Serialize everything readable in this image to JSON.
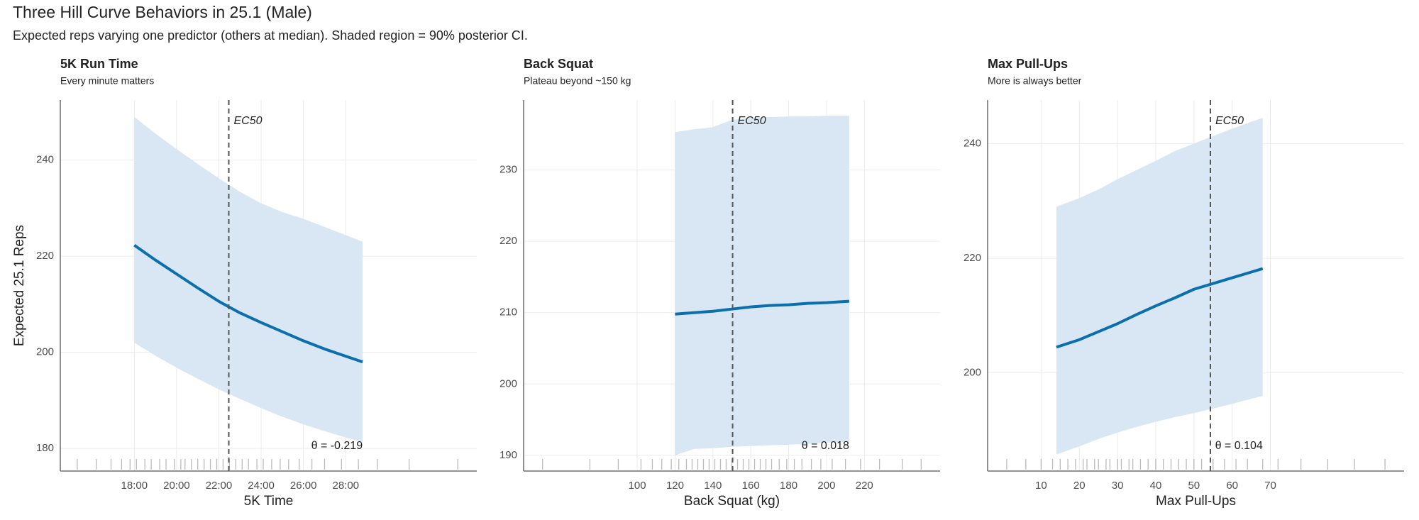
{
  "title": "Three Hill Curve Behaviors in 25.1 (Male)",
  "subtitle": "Expected reps varying one predictor (others at median). Shaded region = 90% posterior CI.",
  "chart_data": [
    {
      "type": "line",
      "title": "5K Run Time",
      "subtitle": "Every minute matters",
      "x_label": "5K Time",
      "y_label": "Expected 25.1 Reps",
      "xlim": [
        14.5,
        34.2
      ],
      "ylim": [
        175.3,
        252.5
      ],
      "xticks": [
        {
          "value": 18,
          "label": "18:00"
        },
        {
          "value": 20,
          "label": "20:00"
        },
        {
          "value": 22,
          "label": "22:00"
        },
        {
          "value": 24,
          "label": "24:00"
        },
        {
          "value": 26,
          "label": "26:00"
        },
        {
          "value": 28,
          "label": "28:00"
        }
      ],
      "yticks": [
        180,
        200,
        220,
        240
      ],
      "grid": true,
      "x": [
        18,
        19,
        20,
        21,
        22,
        23,
        24,
        25,
        26,
        27,
        28,
        28.8
      ],
      "series": [
        {
          "color": "#0b6fae",
          "band_color": "#d8e7f3",
          "values": [
            222.3,
            219.2,
            216.3,
            213.4,
            210.6,
            208.2,
            206.2,
            204.3,
            202.4,
            200.7,
            199.2,
            198.0
          ],
          "upper": [
            249,
            245.5,
            242.3,
            239.2,
            236.2,
            233.4,
            231.0,
            229.2,
            227.8,
            226.1,
            224.4,
            223
          ],
          "lower": [
            202,
            199.3,
            196.8,
            194.5,
            192.3,
            190.3,
            188.4,
            186.6,
            185.0,
            183.6,
            182.3,
            181.3
          ]
        }
      ],
      "ec50": 22.47,
      "ec50_label": "EC50",
      "annotation": "θ = -0.219",
      "rug": [
        15.3,
        16.2,
        16.9,
        17.4,
        17.8,
        18.1,
        18.5,
        18.8,
        19.2,
        19.5,
        19.9,
        20.2,
        20.4,
        20.7,
        21.0,
        21.3,
        21.6,
        21.9,
        22.2,
        22.5,
        22.8,
        23.1,
        23.4,
        23.8,
        24.1,
        24.5,
        24.9,
        25.3,
        25.8,
        26.4,
        27.0,
        27.8,
        28.6,
        29.5,
        31.0,
        33.3
      ]
    },
    {
      "type": "line",
      "title": "Back Squat",
      "subtitle": "Plateau beyond ~150 kg",
      "x_label": "Back Squat (kg)",
      "xlim": [
        40,
        260
      ],
      "ylim": [
        187.8,
        239.8
      ],
      "xticks": [
        100,
        120,
        140,
        160,
        180,
        200,
        220
      ],
      "yticks": [
        190,
        200,
        210,
        220,
        230
      ],
      "grid": true,
      "x": [
        120,
        130,
        140,
        150,
        160,
        170,
        180,
        190,
        200,
        212
      ],
      "series": [
        {
          "color": "#0b6fae",
          "band_color": "#d8e7f3",
          "values": [
            209.8,
            210.0,
            210.2,
            210.5,
            210.8,
            211.0,
            211.1,
            211.3,
            211.4,
            211.6
          ],
          "upper": [
            235.3,
            235.7,
            236.0,
            237.0,
            237.3,
            237.4,
            237.5,
            237.5,
            237.6,
            237.6
          ],
          "lower": [
            190.0,
            190.9,
            191.0,
            191.2,
            191.3,
            191.4,
            191.5,
            191.6,
            191.8,
            191.9
          ]
        }
      ],
      "ec50": 150.4,
      "ec50_label": "EC50",
      "annotation": "θ = 0.018",
      "rug": [
        50,
        75,
        90,
        102,
        108,
        113,
        118,
        122,
        126,
        129,
        132,
        135,
        138,
        141,
        144,
        147,
        150,
        153,
        156,
        159,
        162,
        165,
        168,
        171,
        175,
        179,
        183,
        187,
        192,
        197,
        203,
        210,
        218,
        228,
        240,
        250
      ]
    },
    {
      "type": "line",
      "title": "Max Pull-Ups",
      "subtitle": "More is always better",
      "x_label": "Max Pull-Ups",
      "xlim": [
        -4,
        105
      ],
      "ylim": [
        182.9,
        247.6
      ],
      "xticks": [
        10,
        20,
        30,
        40,
        50,
        60,
        70
      ],
      "yticks": [
        200,
        220,
        240
      ],
      "grid": true,
      "x": [
        14,
        20,
        25,
        30,
        35,
        40,
        45,
        50,
        55,
        60,
        65,
        68
      ],
      "series": [
        {
          "color": "#0b6fae",
          "band_color": "#d8e7f3",
          "values": [
            204.5,
            205.8,
            207.2,
            208.6,
            210.2,
            211.7,
            213.1,
            214.6,
            215.6,
            216.6,
            217.6,
            218.2
          ],
          "upper": [
            229,
            230.5,
            232,
            233.8,
            235.4,
            237,
            238.7,
            240,
            241.3,
            242.6,
            243.8,
            244.5
          ],
          "lower": [
            185.8,
            187.2,
            188.5,
            189.6,
            190.6,
            191.5,
            192.3,
            193,
            193.8,
            194.6,
            195.5,
            196
          ]
        }
      ],
      "ec50": 54.3,
      "ec50_label": "EC50",
      "annotation": "θ = 0.104",
      "rug": [
        1,
        6,
        10,
        13,
        15,
        17,
        19,
        21,
        22,
        24,
        25,
        27,
        28,
        30,
        31,
        33,
        34,
        36,
        38,
        40,
        42,
        44,
        46,
        48,
        50,
        52,
        55,
        58,
        61,
        64,
        68,
        72,
        78,
        85,
        92,
        100
      ]
    }
  ]
}
